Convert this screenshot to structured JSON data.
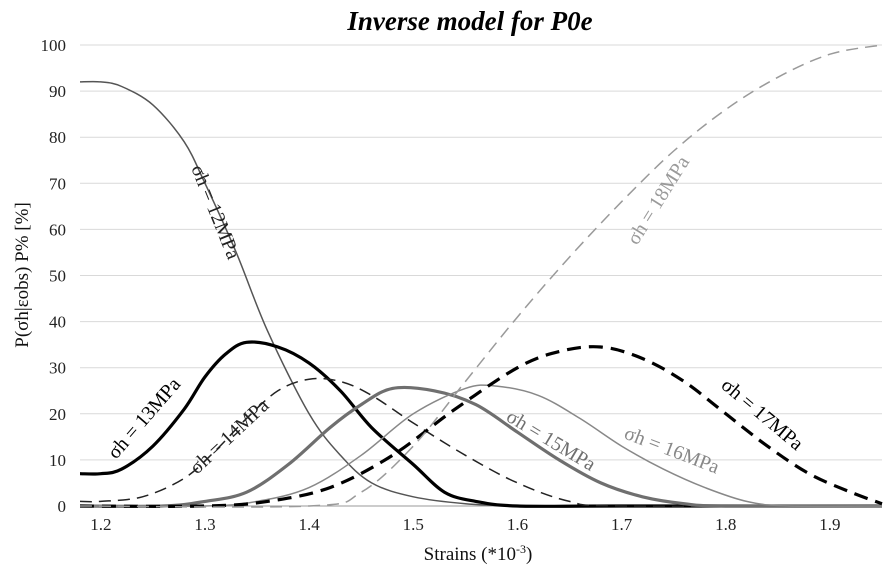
{
  "chart_data": {
    "type": "line",
    "title": "Inverse model for P0e",
    "xlabel": "Strains (*10",
    "xlabel_exp": "-3",
    "xlabel_close": ")",
    "ylabel": "P(σh|εobs) P% [%]",
    "xlim": [
      1.18,
      1.95
    ],
    "ylim": [
      0,
      100
    ],
    "x_ticks": [
      "1.2",
      "1.3",
      "1.4",
      "1.5",
      "1.6",
      "1.7",
      "1.8",
      "1.9"
    ],
    "y_ticks": [
      "0",
      "10",
      "20",
      "30",
      "40",
      "50",
      "60",
      "70",
      "80",
      "90",
      "100"
    ],
    "grid": "horizontal",
    "series": [
      {
        "name": "σh = 12MPa",
        "style": "solid",
        "color": "#555555",
        "x": [
          1.18,
          1.2,
          1.22,
          1.25,
          1.28,
          1.3,
          1.33,
          1.36,
          1.4,
          1.43,
          1.46,
          1.5,
          1.55,
          1.6,
          1.65,
          1.7,
          1.75,
          1.8,
          1.95
        ],
        "y": [
          92,
          92,
          91,
          87,
          79,
          70,
          55,
          38,
          20,
          11,
          5,
          2,
          0.5,
          0,
          0,
          0,
          0,
          0,
          0
        ]
      },
      {
        "name": "σh = 13MPa",
        "style": "bold",
        "color": "#000000",
        "x": [
          1.18,
          1.2,
          1.22,
          1.25,
          1.28,
          1.3,
          1.32,
          1.34,
          1.37,
          1.4,
          1.43,
          1.46,
          1.5,
          1.53,
          1.56,
          1.6,
          1.7,
          1.95
        ],
        "y": [
          7,
          7,
          8,
          13,
          21,
          28,
          33,
          35.5,
          34.5,
          31,
          25,
          17,
          9,
          3,
          1,
          0,
          0,
          0
        ]
      },
      {
        "name": "σh = 14MPa",
        "style": "dashed",
        "color": "#222222",
        "x": [
          1.18,
          1.2,
          1.24,
          1.28,
          1.31,
          1.34,
          1.37,
          1.4,
          1.43,
          1.46,
          1.5,
          1.55,
          1.6,
          1.65,
          1.7,
          1.95
        ],
        "y": [
          1,
          1,
          2,
          6,
          12,
          19,
          25,
          27.5,
          27,
          24,
          18,
          11,
          5,
          1,
          0,
          0
        ]
      },
      {
        "name": "σh = 15MPa",
        "style": "bold",
        "color": "#6f6f6f",
        "x": [
          1.18,
          1.26,
          1.3,
          1.34,
          1.38,
          1.42,
          1.45,
          1.48,
          1.52,
          1.56,
          1.6,
          1.64,
          1.68,
          1.72,
          1.76,
          1.8,
          1.95
        ],
        "y": [
          0,
          0,
          1,
          3,
          9,
          17,
          22,
          25.5,
          25,
          22,
          16,
          10,
          5,
          2,
          0.5,
          0,
          0
        ]
      },
      {
        "name": "σh = 16MPa",
        "style": "solid",
        "color": "#888888",
        "x": [
          1.18,
          1.3,
          1.35,
          1.4,
          1.45,
          1.5,
          1.55,
          1.58,
          1.62,
          1.66,
          1.7,
          1.74,
          1.78,
          1.82,
          1.86,
          1.95
        ],
        "y": [
          0,
          0,
          1,
          4,
          11,
          20,
          25.5,
          26,
          24,
          19,
          13,
          8,
          4,
          1,
          0,
          0
        ]
      },
      {
        "name": "σh = 17MPa",
        "style": "bold-dashed",
        "color": "#000000",
        "x": [
          1.18,
          1.3,
          1.36,
          1.42,
          1.48,
          1.54,
          1.6,
          1.64,
          1.68,
          1.72,
          1.76,
          1.8,
          1.84,
          1.88,
          1.92,
          1.95
        ],
        "y": [
          0,
          0,
          1,
          4,
          11,
          21,
          30,
          33.5,
          34.5,
          32,
          27,
          20,
          13,
          7,
          3,
          0.5
        ]
      },
      {
        "name": "σh = 18MPa",
        "style": "dashed",
        "color": "#9a9a9a",
        "x": [
          1.18,
          1.4,
          1.45,
          1.5,
          1.55,
          1.6,
          1.65,
          1.7,
          1.75,
          1.8,
          1.85,
          1.9,
          1.95
        ],
        "y": [
          0,
          0,
          3,
          13,
          27,
          41,
          54,
          66,
          77,
          86,
          93,
          98,
          100
        ]
      }
    ],
    "labels": [
      {
        "text": "σh = 12MPa",
        "series": 0
      },
      {
        "text": "σh = 13MPa",
        "series": 1
      },
      {
        "text": "σh = 14MPa",
        "series": 2
      },
      {
        "text": "σh = 15MPa",
        "series": 3
      },
      {
        "text": "σh = 16MPa",
        "series": 4
      },
      {
        "text": "σh = 17MPa",
        "series": 5
      },
      {
        "text": "σh = 18MPa",
        "series": 6
      }
    ]
  }
}
